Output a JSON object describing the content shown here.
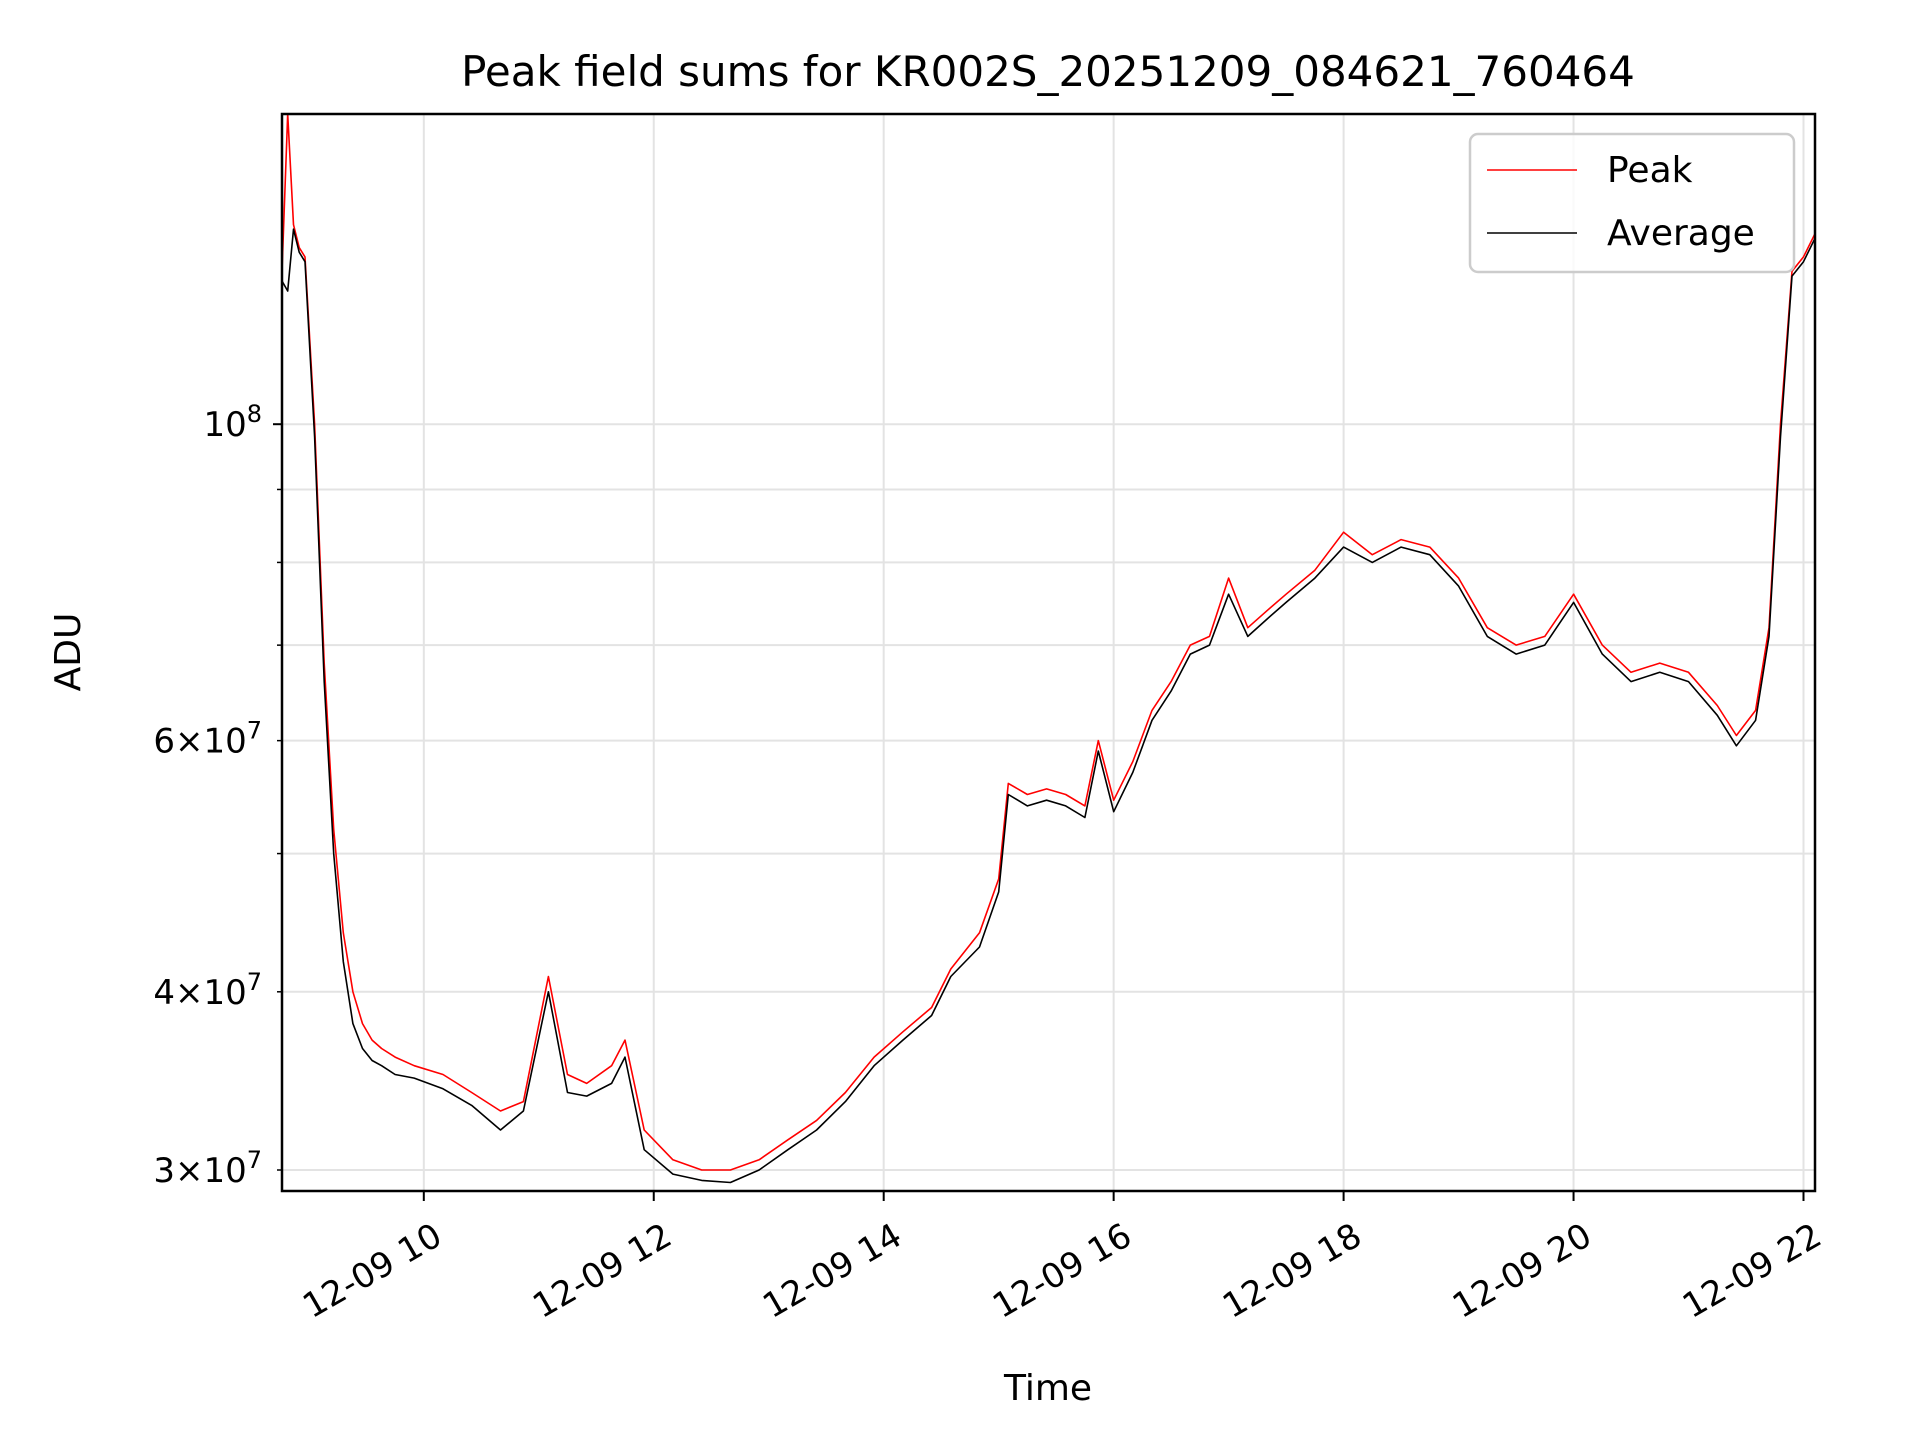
{
  "chart_data": {
    "type": "line",
    "title": "Peak field sums for KR002S_20251209_084621_760464",
    "xlabel": "Time",
    "ylabel": "ADU",
    "x_scale": "time",
    "y_scale": "log",
    "xlim": [
      "2025-12-09 08:46",
      "2025-12-09 22:06"
    ],
    "ylim": [
      29000000,
      165000000
    ],
    "x_ticks": [
      {
        "t": "2025-12-09 10:00",
        "label": "12-09 10"
      },
      {
        "t": "2025-12-09 12:00",
        "label": "12-09 12"
      },
      {
        "t": "2025-12-09 14:00",
        "label": "12-09 14"
      },
      {
        "t": "2025-12-09 16:00",
        "label": "12-09 16"
      },
      {
        "t": "2025-12-09 18:00",
        "label": "12-09 18"
      },
      {
        "t": "2025-12-09 20:00",
        "label": "12-09 20"
      },
      {
        "t": "2025-12-09 22:00",
        "label": "12-09 22"
      }
    ],
    "y_major_ticks": [
      {
        "v": 100000000,
        "mant": "",
        "exp": "8"
      }
    ],
    "y_minor_ticks": [
      {
        "v": 30000000,
        "mant": "3",
        "exp": "7"
      },
      {
        "v": 40000000,
        "mant": "4",
        "exp": "7"
      },
      {
        "v": 60000000,
        "mant": "6",
        "exp": "7"
      }
    ],
    "grid": true,
    "legend_position": "top-right",
    "series": [
      {
        "name": "Peak",
        "color": "#ff0000",
        "x": [
          "2025-12-09 08:46",
          "2025-12-09 08:49",
          "2025-12-09 08:52",
          "2025-12-09 08:55",
          "2025-12-09 08:58",
          "2025-12-09 09:03",
          "2025-12-09 09:08",
          "2025-12-09 09:13",
          "2025-12-09 09:18",
          "2025-12-09 09:23",
          "2025-12-09 09:28",
          "2025-12-09 09:33",
          "2025-12-09 09:38",
          "2025-12-09 09:45",
          "2025-12-09 09:55",
          "2025-12-09 10:10",
          "2025-12-09 10:25",
          "2025-12-09 10:40",
          "2025-12-09 10:52",
          "2025-12-09 11:05",
          "2025-12-09 11:15",
          "2025-12-09 11:25",
          "2025-12-09 11:38",
          "2025-12-09 11:45",
          "2025-12-09 11:55",
          "2025-12-09 12:10",
          "2025-12-09 12:25",
          "2025-12-09 12:40",
          "2025-12-09 12:55",
          "2025-12-09 13:10",
          "2025-12-09 13:25",
          "2025-12-09 13:40",
          "2025-12-09 13:55",
          "2025-12-09 14:10",
          "2025-12-09 14:25",
          "2025-12-09 14:35",
          "2025-12-09 14:50",
          "2025-12-09 15:00",
          "2025-12-09 15:05",
          "2025-12-09 15:15",
          "2025-12-09 15:25",
          "2025-12-09 15:35",
          "2025-12-09 15:45",
          "2025-12-09 15:52",
          "2025-12-09 16:00",
          "2025-12-09 16:10",
          "2025-12-09 16:20",
          "2025-12-09 16:30",
          "2025-12-09 16:40",
          "2025-12-09 16:50",
          "2025-12-09 17:00",
          "2025-12-09 17:10",
          "2025-12-09 17:20",
          "2025-12-09 17:30",
          "2025-12-09 17:45",
          "2025-12-09 18:00",
          "2025-12-09 18:15",
          "2025-12-09 18:30",
          "2025-12-09 18:45",
          "2025-12-09 19:00",
          "2025-12-09 19:15",
          "2025-12-09 19:30",
          "2025-12-09 19:45",
          "2025-12-09 20:00",
          "2025-12-09 20:15",
          "2025-12-09 20:30",
          "2025-12-09 20:45",
          "2025-12-09 21:00",
          "2025-12-09 21:15",
          "2025-12-09 21:25",
          "2025-12-09 21:35",
          "2025-12-09 21:42",
          "2025-12-09 21:48",
          "2025-12-09 21:54",
          "2025-12-09 22:00",
          "2025-12-09 22:06"
        ],
        "y": [
          128000000,
          165000000,
          138000000,
          133000000,
          131000000,
          100000000,
          68000000,
          52000000,
          44000000,
          40000000,
          38000000,
          37000000,
          36500000,
          36000000,
          35500000,
          35000000,
          34000000,
          33000000,
          33500000,
          41000000,
          35000000,
          34500000,
          35500000,
          37000000,
          32000000,
          30500000,
          30000000,
          30000000,
          30500000,
          31500000,
          32500000,
          34000000,
          36000000,
          37500000,
          39000000,
          41500000,
          44000000,
          48000000,
          56000000,
          55000000,
          55500000,
          55000000,
          54000000,
          60000000,
          54500000,
          58000000,
          63000000,
          66000000,
          70000000,
          71000000,
          78000000,
          72000000,
          74000000,
          76000000,
          79000000,
          84000000,
          81000000,
          83000000,
          82000000,
          78000000,
          72000000,
          70000000,
          71000000,
          76000000,
          70000000,
          67000000,
          68000000,
          67000000,
          63500000,
          60500000,
          63000000,
          72000000,
          100000000,
          128000000,
          131000000,
          136000000
        ]
      },
      {
        "name": "Average",
        "color": "#000000",
        "x": [
          "2025-12-09 08:46",
          "2025-12-09 08:49",
          "2025-12-09 08:52",
          "2025-12-09 08:55",
          "2025-12-09 08:58",
          "2025-12-09 09:03",
          "2025-12-09 09:08",
          "2025-12-09 09:13",
          "2025-12-09 09:18",
          "2025-12-09 09:23",
          "2025-12-09 09:28",
          "2025-12-09 09:33",
          "2025-12-09 09:38",
          "2025-12-09 09:45",
          "2025-12-09 09:55",
          "2025-12-09 10:10",
          "2025-12-09 10:25",
          "2025-12-09 10:40",
          "2025-12-09 10:52",
          "2025-12-09 11:05",
          "2025-12-09 11:15",
          "2025-12-09 11:25",
          "2025-12-09 11:38",
          "2025-12-09 11:45",
          "2025-12-09 11:55",
          "2025-12-09 12:10",
          "2025-12-09 12:25",
          "2025-12-09 12:40",
          "2025-12-09 12:55",
          "2025-12-09 13:10",
          "2025-12-09 13:25",
          "2025-12-09 13:40",
          "2025-12-09 13:55",
          "2025-12-09 14:10",
          "2025-12-09 14:25",
          "2025-12-09 14:35",
          "2025-12-09 14:50",
          "2025-12-09 15:00",
          "2025-12-09 15:05",
          "2025-12-09 15:15",
          "2025-12-09 15:25",
          "2025-12-09 15:35",
          "2025-12-09 15:45",
          "2025-12-09 15:52",
          "2025-12-09 16:00",
          "2025-12-09 16:10",
          "2025-12-09 16:20",
          "2025-12-09 16:30",
          "2025-12-09 16:40",
          "2025-12-09 16:50",
          "2025-12-09 17:00",
          "2025-12-09 17:10",
          "2025-12-09 17:20",
          "2025-12-09 17:30",
          "2025-12-09 17:45",
          "2025-12-09 18:00",
          "2025-12-09 18:15",
          "2025-12-09 18:30",
          "2025-12-09 18:45",
          "2025-12-09 19:00",
          "2025-12-09 19:15",
          "2025-12-09 19:30",
          "2025-12-09 19:45",
          "2025-12-09 20:00",
          "2025-12-09 20:15",
          "2025-12-09 20:30",
          "2025-12-09 20:45",
          "2025-12-09 21:00",
          "2025-12-09 21:15",
          "2025-12-09 21:25",
          "2025-12-09 21:35",
          "2025-12-09 21:42",
          "2025-12-09 21:48",
          "2025-12-09 21:54",
          "2025-12-09 22:00",
          "2025-12-09 22:06"
        ],
        "y": [
          126000000,
          124000000,
          137000000,
          132000000,
          130000000,
          98000000,
          66000000,
          50000000,
          42000000,
          38000000,
          36500000,
          35800000,
          35500000,
          35000000,
          34800000,
          34200000,
          33300000,
          32000000,
          33000000,
          40000000,
          34000000,
          33800000,
          34500000,
          36000000,
          31000000,
          29800000,
          29500000,
          29400000,
          30000000,
          31000000,
          32000000,
          33500000,
          35500000,
          37000000,
          38500000,
          41000000,
          43000000,
          47000000,
          55000000,
          54000000,
          54500000,
          54000000,
          53000000,
          59000000,
          53500000,
          57000000,
          62000000,
          65000000,
          69000000,
          70000000,
          76000000,
          71000000,
          73000000,
          75000000,
          78000000,
          82000000,
          80000000,
          82000000,
          81000000,
          77000000,
          71000000,
          69000000,
          70000000,
          75000000,
          69000000,
          66000000,
          67000000,
          66000000,
          62500000,
          59500000,
          62000000,
          71000000,
          98000000,
          127000000,
          130000000,
          135000000
        ]
      }
    ]
  }
}
